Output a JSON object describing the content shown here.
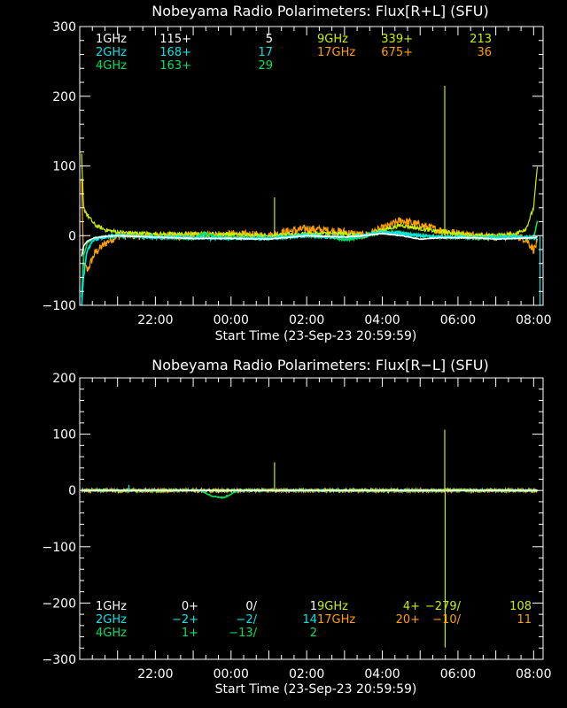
{
  "colors": {
    "background": "#000000",
    "foreground": "#ffffff",
    "1GHz": "#ffffff",
    "2GHz": "#00e5e5",
    "4GHz": "#00e060",
    "9GHz": "#c8f000",
    "17GHz": "#ffa000"
  },
  "chart_data": [
    {
      "type": "line",
      "title": "Nobeyama Radio Polarimeters: Flux[R+L] (SFU)",
      "xlabel": "Start Time (23-Sep-23 20:59:59)",
      "ylabel": "",
      "ylim": [
        -100,
        300
      ],
      "yticks": [
        -100,
        0,
        100,
        200,
        300
      ],
      "ytick_labels": [
        "−100",
        "0",
        "100",
        "200",
        "300"
      ],
      "xlim": [
        -1,
        11.25
      ],
      "xticks": [
        1,
        3,
        5,
        7,
        9,
        11
      ],
      "xtick_labels": [
        "22:00",
        "00:00",
        "02:00",
        "04:00",
        "06:00",
        "08:00"
      ],
      "legend": [
        {
          "series": "1GHz",
          "col1": "115+",
          "col2": "5"
        },
        {
          "series": "2GHz",
          "col1": "168+",
          "col2": "17"
        },
        {
          "series": "4GHz",
          "col1": "163+",
          "col2": "29"
        },
        {
          "series": "9GHz",
          "col1": "339+",
          "col2": "213"
        },
        {
          "series": "17GHz",
          "col1": "675+",
          "col2": "36"
        }
      ],
      "series": [
        {
          "name": "17GHz",
          "x": [
            -0.95,
            -0.9,
            -0.8,
            -0.6,
            -0.3,
            0,
            1,
            2,
            3,
            4,
            4.5,
            5,
            6,
            6.5,
            7,
            7.5,
            8,
            8.5,
            9,
            9.5,
            10,
            10.5,
            10.8,
            11.0,
            11.1
          ],
          "values": [
            80,
            -40,
            -50,
            -25,
            -10,
            0,
            0,
            0,
            2,
            0,
            6,
            10,
            5,
            0,
            10,
            22,
            15,
            8,
            3,
            0,
            -2,
            0,
            -5,
            -20,
            -10
          ],
          "noise": 6
        },
        {
          "name": "9GHz",
          "x": [
            -0.95,
            -0.9,
            -0.8,
            -0.6,
            -0.3,
            0,
            1,
            2,
            3,
            4,
            4.5,
            5,
            6,
            6.5,
            7,
            7.5,
            8,
            8.5,
            9,
            9.5,
            10,
            10.5,
            10.8,
            11.0,
            11.1
          ],
          "values": [
            115,
            40,
            30,
            15,
            8,
            5,
            2,
            2,
            2,
            0,
            1,
            3,
            3,
            0,
            8,
            15,
            10,
            6,
            3,
            0,
            0,
            2,
            10,
            40,
            100
          ],
          "noise": 3
        },
        {
          "name": "4GHz",
          "x": [
            -0.95,
            -0.9,
            -0.8,
            -0.6,
            -0.3,
            0,
            1,
            2,
            2.3,
            2.6,
            3,
            4,
            5,
            5.5,
            6,
            6.5,
            7,
            7.5,
            8,
            8.5,
            9,
            9.5,
            10,
            10.5,
            11.0,
            11.1
          ],
          "values": [
            -90,
            -30,
            -10,
            -3,
            -2,
            0,
            -2,
            -4,
            3,
            -2,
            -3,
            -4,
            0,
            -2,
            -6,
            -2,
            5,
            4,
            0,
            -2,
            -3,
            -3,
            -2,
            -2,
            -3,
            20
          ],
          "noise": 1.5
        },
        {
          "name": "2GHz",
          "x": [
            -0.95,
            -0.9,
            -0.8,
            -0.6,
            -0.3,
            0,
            1,
            2,
            3,
            4,
            5,
            6,
            6.5,
            7,
            7.5,
            8,
            8.5,
            9,
            9.5,
            10,
            10.5,
            11.0,
            11.1
          ],
          "values": [
            -100,
            -60,
            -20,
            -5,
            -2,
            0,
            -2,
            -3,
            -4,
            -4,
            0,
            -2,
            0,
            5,
            3,
            0,
            -2,
            -2,
            -3,
            -3,
            -2,
            -3,
            -5
          ],
          "noise": 2
        },
        {
          "name": "1GHz",
          "x": [
            -0.95,
            -0.9,
            -0.8,
            -0.6,
            -0.3,
            0,
            1,
            2,
            3,
            4,
            5,
            6,
            6.5,
            7,
            7.5,
            8,
            8.5,
            9,
            9.5,
            10,
            10.5,
            11.0,
            11.1
          ],
          "values": [
            -30,
            -15,
            -8,
            -3,
            -1,
            0,
            -2,
            -4,
            -4,
            -5,
            0,
            -2,
            0,
            3,
            0,
            -5,
            -3,
            -3,
            -3,
            -5,
            -4,
            -3,
            -2
          ],
          "noise": 0.5
        }
      ],
      "spikes": [
        {
          "series": "9GHz",
          "x": 8.65,
          "value": 215
        },
        {
          "series": "9GHz",
          "x": 4.15,
          "value": 55
        },
        {
          "series": "2GHz",
          "x": 11.17,
          "value": -100
        }
      ]
    },
    {
      "type": "line",
      "title": "Nobeyama Radio Polarimeters: Flux[R−L] (SFU)",
      "xlabel": "Start Time (23-Sep-23 20:59:59)",
      "ylabel": "",
      "ylim": [
        -300,
        200
      ],
      "yticks": [
        -300,
        -200,
        -100,
        0,
        100,
        200
      ],
      "ytick_labels": [
        "−300",
        "−200",
        "−100",
        "0",
        "100",
        "200"
      ],
      "xlim": [
        -1,
        11.25
      ],
      "xticks": [
        1,
        3,
        5,
        7,
        9,
        11
      ],
      "xtick_labels": [
        "22:00",
        "00:00",
        "02:00",
        "04:00",
        "06:00",
        "08:00"
      ],
      "legend": [
        {
          "series": "1GHz",
          "col1": "0+",
          "col2": "0/",
          "col3": "1"
        },
        {
          "series": "2GHz",
          "col1": "−2+",
          "col2": "−2/",
          "col3": "14"
        },
        {
          "series": "4GHz",
          "col1": "1+",
          "col2": "−13/",
          "col3": "2"
        },
        {
          "series": "9GHz",
          "col1": "4+",
          "col2": "−279/",
          "col3": "108"
        },
        {
          "series": "17GHz",
          "col1": "20+",
          "col2": "−10/",
          "col3": "11"
        }
      ],
      "series": [
        {
          "name": "17GHz",
          "x": [
            -0.95,
            0,
            2,
            4,
            6,
            8,
            10,
            11.1
          ],
          "values": [
            0,
            0,
            0,
            0,
            0,
            0,
            0,
            0
          ],
          "noise": 3
        },
        {
          "name": "9GHz",
          "x": [
            -0.95,
            0,
            2,
            4,
            6,
            8,
            10,
            11.1
          ],
          "values": [
            0,
            0,
            0,
            0,
            0,
            0,
            0,
            0
          ],
          "noise": 3
        },
        {
          "name": "4GHz",
          "x": [
            -0.95,
            1.5,
            2.2,
            2.5,
            2.8,
            3.2,
            4,
            6,
            8,
            10,
            11.1
          ],
          "values": [
            0,
            0,
            0,
            -10,
            -13,
            0,
            0,
            0,
            0,
            0,
            0
          ],
          "noise": 0.8
        },
        {
          "name": "2GHz",
          "x": [
            -0.95,
            0,
            2,
            4,
            6,
            8,
            10,
            11.1
          ],
          "values": [
            0,
            0,
            0,
            0,
            0,
            0,
            0,
            0
          ],
          "noise": 0.8
        },
        {
          "name": "1GHz",
          "x": [
            -0.95,
            0,
            2,
            4,
            6,
            8,
            10,
            11.1
          ],
          "values": [
            0,
            0,
            0,
            0,
            0,
            0,
            0,
            0
          ],
          "noise": 0.3
        }
      ],
      "spikes": [
        {
          "series": "9GHz",
          "x": 8.65,
          "value": 108
        },
        {
          "series": "9GHz",
          "x": 8.66,
          "value": -279
        },
        {
          "series": "9GHz",
          "x": 4.15,
          "value": 50
        },
        {
          "series": "2GHz",
          "x": 0.3,
          "value": 10
        }
      ]
    }
  ]
}
